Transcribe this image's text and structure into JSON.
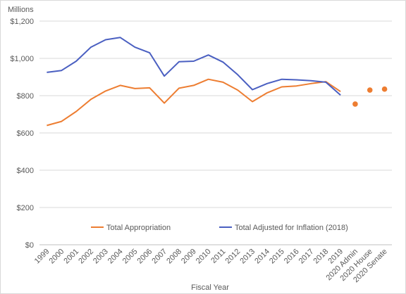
{
  "chart_data": {
    "type": "line",
    "title": "",
    "units_label": "Millions",
    "xlabel": "Fiscal Year",
    "ylabel": "",
    "ylim": [
      0,
      1200
    ],
    "yticks": [
      0,
      200,
      400,
      600,
      800,
      1000,
      1200
    ],
    "ytick_labels": [
      "$0",
      "$200",
      "$400",
      "$600",
      "$800",
      "$1,000",
      "$1,200"
    ],
    "grid": true,
    "legend_position": "bottom",
    "categories": [
      "1999",
      "2000",
      "2001",
      "2002",
      "2003",
      "2004",
      "2005",
      "2006",
      "2007",
      "2008",
      "2009",
      "2010",
      "2011",
      "2012",
      "2013",
      "2014",
      "2015",
      "2016",
      "2017",
      "2018",
      "2019",
      "2020 Admin",
      "2020 House",
      "2020 Senate"
    ],
    "series": [
      {
        "name": "Total Appropriation",
        "color": "#ed7d31",
        "values": [
          640,
          662,
          715,
          780,
          825,
          855,
          838,
          842,
          760,
          840,
          855,
          888,
          872,
          830,
          768,
          815,
          847,
          852,
          865,
          875,
          822,
          755,
          830,
          835
        ]
      },
      {
        "name": "Total Adjusted for Inflation (2018)",
        "color": "#4a5fc1",
        "values": [
          925,
          935,
          985,
          1060,
          1100,
          1112,
          1060,
          1030,
          905,
          982,
          985,
          1018,
          980,
          912,
          832,
          865,
          888,
          885,
          880,
          872,
          803,
          null,
          null,
          null
        ]
      }
    ],
    "projection_start_index": 21
  }
}
